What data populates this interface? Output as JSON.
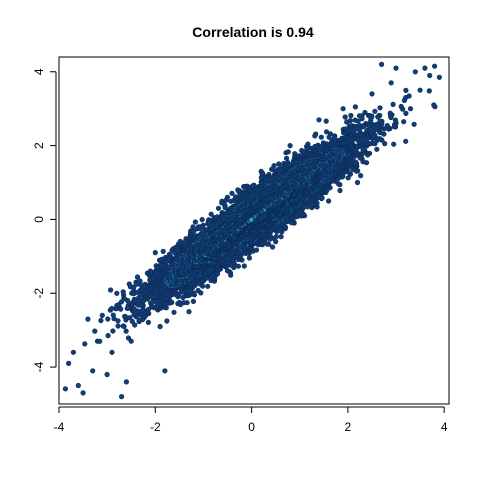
{
  "chart_data": {
    "type": "scatter",
    "title": "Correlation is 0.94",
    "xlabel": "",
    "ylabel": "",
    "correlation": 0.94,
    "xlim": [
      -4.0,
      4.1
    ],
    "ylim": [
      -5.0,
      4.4
    ],
    "x_ticks": [
      -4,
      -2,
      0,
      2,
      4
    ],
    "y_ticks": [
      -4,
      -2,
      0,
      2,
      4
    ],
    "x_tick_labels": [
      "-4",
      "-2",
      "0",
      "2",
      "4"
    ],
    "y_tick_labels": [
      "-4",
      "-2",
      "0",
      "2",
      "4"
    ],
    "grid": false,
    "legend": "none",
    "point_colors": {
      "outline": "#0d2c57",
      "sparse": "#123e78",
      "mid": "#1a64a2",
      "dense": "#1d8fc4",
      "core": "#2aa8d4"
    },
    "points": [
      [
        -3.8,
        -3.9
      ],
      [
        -3.7,
        -3.6
      ],
      [
        -3.5,
        -4.7
      ],
      [
        -3.6,
        -4.5
      ],
      [
        -3.3,
        -4.1
      ],
      [
        -3.2,
        -3.3
      ],
      [
        -3.0,
        -4.2
      ],
      [
        -2.9,
        -3.6
      ],
      [
        -2.6,
        -4.4
      ],
      [
        -1.8,
        -4.1
      ],
      [
        -3.1,
        -2.6
      ],
      [
        -2.8,
        -2.0
      ],
      [
        -2.5,
        -3.3
      ],
      [
        -2.4,
        -1.7
      ],
      [
        -2.1,
        -1.4
      ],
      [
        -1.9,
        -2.9
      ],
      [
        -1.6,
        -0.9
      ],
      [
        -1.3,
        -2.5
      ],
      [
        -1.1,
        -0.2
      ],
      [
        -0.8,
        -1.6
      ],
      [
        -0.5,
        0.6
      ],
      [
        -0.2,
        -1.1
      ],
      [
        0.2,
        1.3
      ],
      [
        0.5,
        -0.6
      ],
      [
        0.8,
        2.0
      ],
      [
        1.1,
        0.1
      ],
      [
        1.4,
        2.7
      ],
      [
        1.6,
        0.5
      ],
      [
        1.9,
        3.0
      ],
      [
        2.2,
        1.0
      ],
      [
        2.5,
        3.4
      ],
      [
        2.6,
        1.9
      ],
      [
        2.9,
        3.7
      ],
      [
        3.0,
        2.6
      ],
      [
        3.2,
        3.3
      ],
      [
        3.4,
        4.0
      ],
      [
        3.5,
        3.5
      ],
      [
        3.6,
        4.1
      ],
      [
        3.8,
        4.15
      ],
      [
        3.9,
        3.85
      ],
      [
        3.0,
        4.1
      ],
      [
        2.7,
        4.2
      ],
      [
        3.3,
        3.0
      ],
      [
        2.0,
        1.4
      ],
      [
        -2.0,
        -0.9
      ],
      [
        -3.4,
        -2.7
      ],
      [
        -2.7,
        -4.8
      ],
      [
        3.7,
        3.9
      ]
    ],
    "synthetic_n": 9000,
    "synthetic_x_mean": 0.05,
    "synthetic_x_sd": 1.0,
    "synthetic_y_mean": 0.05,
    "synthetic_y_sd": 1.0
  }
}
